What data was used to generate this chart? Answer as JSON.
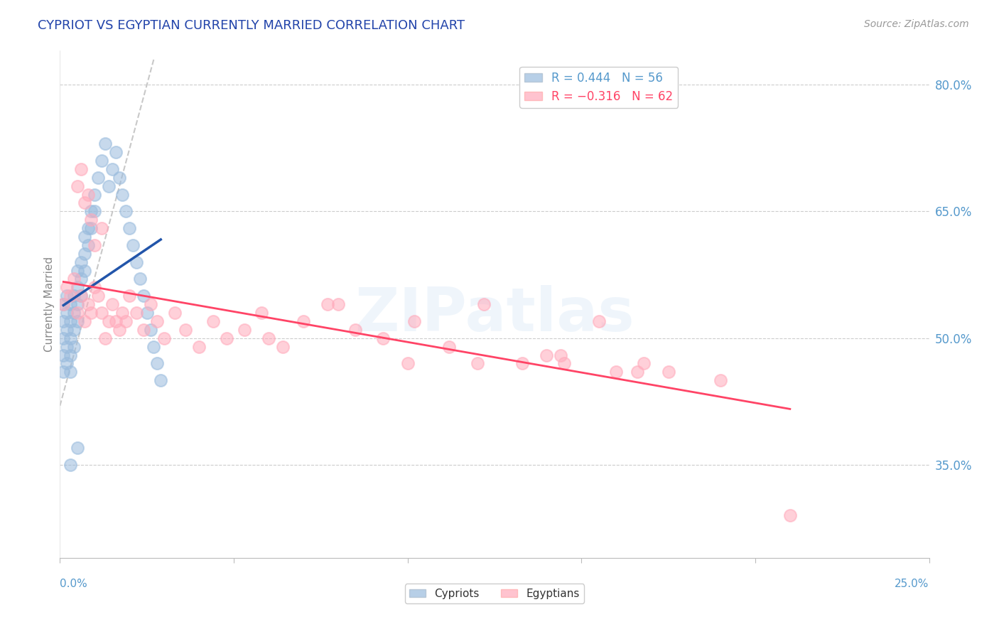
{
  "title": "CYPRIOT VS EGYPTIAN CURRENTLY MARRIED CORRELATION CHART",
  "source": "Source: ZipAtlas.com",
  "ylabel": "Currently Married",
  "xlim": [
    0.0,
    0.25
  ],
  "ylim": [
    0.24,
    0.84
  ],
  "yticks": [
    0.35,
    0.5,
    0.65,
    0.8
  ],
  "xticks": [
    0.0,
    0.25
  ],
  "legend_blue_r": "R = 0.444",
  "legend_blue_n": "N = 56",
  "legend_pink_r": "R = -0.316",
  "legend_pink_n": "N = 62",
  "blue_color": "#99BBDD",
  "pink_color": "#FFAABB",
  "line_blue_color": "#2255AA",
  "line_pink_color": "#FF4466",
  "ref_line_color": "#BBBBBB",
  "axis_label_color": "#5599CC",
  "title_color": "#2244AA",
  "background_color": "#FFFFFF",
  "grid_color": "#CCCCCC",
  "blue_x": [
    0.001,
    0.001,
    0.001,
    0.001,
    0.001,
    0.002,
    0.002,
    0.002,
    0.002,
    0.002,
    0.003,
    0.003,
    0.003,
    0.003,
    0.003,
    0.004,
    0.004,
    0.004,
    0.004,
    0.005,
    0.005,
    0.005,
    0.005,
    0.006,
    0.006,
    0.006,
    0.007,
    0.007,
    0.007,
    0.008,
    0.008,
    0.009,
    0.009,
    0.01,
    0.01,
    0.011,
    0.012,
    0.013,
    0.014,
    0.015,
    0.016,
    0.017,
    0.018,
    0.019,
    0.02,
    0.021,
    0.022,
    0.023,
    0.024,
    0.025,
    0.026,
    0.027,
    0.028,
    0.029,
    0.005,
    0.003
  ],
  "blue_y": [
    0.52,
    0.5,
    0.48,
    0.46,
    0.54,
    0.51,
    0.49,
    0.53,
    0.47,
    0.55,
    0.5,
    0.52,
    0.48,
    0.54,
    0.46,
    0.53,
    0.51,
    0.49,
    0.55,
    0.56,
    0.54,
    0.52,
    0.58,
    0.57,
    0.55,
    0.59,
    0.6,
    0.58,
    0.62,
    0.63,
    0.61,
    0.65,
    0.63,
    0.67,
    0.65,
    0.69,
    0.71,
    0.73,
    0.68,
    0.7,
    0.72,
    0.69,
    0.67,
    0.65,
    0.63,
    0.61,
    0.59,
    0.57,
    0.55,
    0.53,
    0.51,
    0.49,
    0.47,
    0.45,
    0.37,
    0.35
  ],
  "pink_x": [
    0.001,
    0.002,
    0.003,
    0.004,
    0.005,
    0.006,
    0.007,
    0.008,
    0.009,
    0.01,
    0.011,
    0.012,
    0.013,
    0.014,
    0.015,
    0.016,
    0.017,
    0.018,
    0.019,
    0.02,
    0.022,
    0.024,
    0.026,
    0.028,
    0.03,
    0.033,
    0.036,
    0.04,
    0.044,
    0.048,
    0.053,
    0.058,
    0.064,
    0.07,
    0.077,
    0.085,
    0.093,
    0.102,
    0.112,
    0.122,
    0.133,
    0.144,
    0.155,
    0.166,
    0.005,
    0.006,
    0.007,
    0.008,
    0.009,
    0.01,
    0.012,
    0.145,
    0.16,
    0.175,
    0.19,
    0.14,
    0.12,
    0.1,
    0.08,
    0.06,
    0.168,
    0.21
  ],
  "pink_y": [
    0.54,
    0.56,
    0.55,
    0.57,
    0.53,
    0.55,
    0.52,
    0.54,
    0.53,
    0.56,
    0.55,
    0.53,
    0.5,
    0.52,
    0.54,
    0.52,
    0.51,
    0.53,
    0.52,
    0.55,
    0.53,
    0.51,
    0.54,
    0.52,
    0.5,
    0.53,
    0.51,
    0.49,
    0.52,
    0.5,
    0.51,
    0.53,
    0.49,
    0.52,
    0.54,
    0.51,
    0.5,
    0.52,
    0.49,
    0.54,
    0.47,
    0.48,
    0.52,
    0.46,
    0.68,
    0.7,
    0.66,
    0.67,
    0.64,
    0.61,
    0.63,
    0.47,
    0.46,
    0.46,
    0.45,
    0.48,
    0.47,
    0.47,
    0.54,
    0.5,
    0.47,
    0.29
  ]
}
